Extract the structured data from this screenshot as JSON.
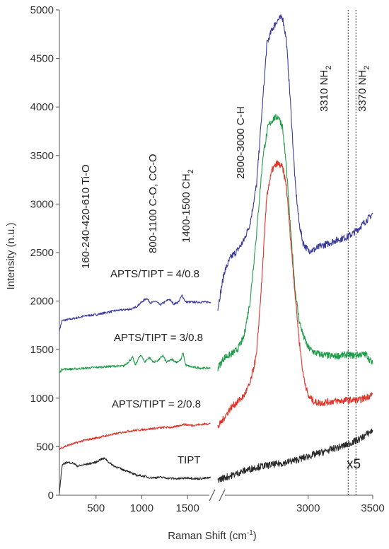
{
  "chart_data": {
    "type": "line",
    "xlabel": "Raman Shift (cm",
    "xlabel_sup": "-1",
    "xlabel_end": ")",
    "ylabel": "Intensity (n.u.)",
    "ylim": [
      0,
      5000
    ],
    "yticks": [
      0,
      500,
      1000,
      1500,
      2000,
      2500,
      3000,
      3500,
      4000,
      4500,
      5000
    ],
    "x_segments": [
      {
        "range": [
          100,
          1800
        ],
        "ticks": [
          500,
          1000,
          1500
        ]
      },
      {
        "range": [
          2300,
          3500
        ],
        "ticks": [
          3000,
          3500
        ]
      }
    ],
    "axis_break": "//",
    "series": [
      {
        "name": "APTS/TIPT = 4/0.8",
        "color": "#3a3a9e",
        "left": [
          [
            100,
            1700
          ],
          [
            130,
            1800
          ],
          [
            200,
            1810
          ],
          [
            300,
            1830
          ],
          [
            400,
            1850
          ],
          [
            500,
            1860
          ],
          [
            600,
            1880
          ],
          [
            700,
            1900
          ],
          [
            800,
            1910
          ],
          [
            900,
            1920
          ],
          [
            950,
            1950
          ],
          [
            1000,
            1990
          ],
          [
            1050,
            2030
          ],
          [
            1100,
            1980
          ],
          [
            1150,
            2000
          ],
          [
            1200,
            1960
          ],
          [
            1250,
            1990
          ],
          [
            1300,
            2020
          ],
          [
            1350,
            1970
          ],
          [
            1400,
            1990
          ],
          [
            1440,
            2060
          ],
          [
            1480,
            1990
          ],
          [
            1550,
            1990
          ],
          [
            1650,
            1990
          ],
          [
            1750,
            1990
          ]
        ],
        "right": [
          [
            2300,
            1930
          ],
          [
            2350,
            2300
          ],
          [
            2400,
            2450
          ],
          [
            2450,
            2520
          ],
          [
            2500,
            2620
          ],
          [
            2550,
            2800
          ],
          [
            2600,
            3200
          ],
          [
            2650,
            4100
          ],
          [
            2680,
            4650
          ],
          [
            2720,
            4800
          ],
          [
            2760,
            4890
          ],
          [
            2800,
            4930
          ],
          [
            2830,
            4700
          ],
          [
            2860,
            4100
          ],
          [
            2900,
            3200
          ],
          [
            2930,
            2800
          ],
          [
            2960,
            2600
          ],
          [
            3000,
            2520
          ],
          [
            3050,
            2530
          ],
          [
            3100,
            2570
          ],
          [
            3150,
            2590
          ],
          [
            3200,
            2620
          ],
          [
            3250,
            2640
          ],
          [
            3300,
            2660
          ],
          [
            3350,
            2700
          ],
          [
            3400,
            2760
          ],
          [
            3450,
            2830
          ],
          [
            3500,
            2900
          ]
        ]
      },
      {
        "name": "APTS/TIPT = 3/0.8",
        "color": "#1f9e4a",
        "left": [
          [
            100,
            1260
          ],
          [
            130,
            1300
          ],
          [
            250,
            1300
          ],
          [
            400,
            1310
          ],
          [
            550,
            1320
          ],
          [
            700,
            1330
          ],
          [
            800,
            1330
          ],
          [
            850,
            1370
          ],
          [
            900,
            1420
          ],
          [
            930,
            1340
          ],
          [
            970,
            1420
          ],
          [
            1000,
            1440
          ],
          [
            1030,
            1370
          ],
          [
            1080,
            1420
          ],
          [
            1130,
            1370
          ],
          [
            1180,
            1390
          ],
          [
            1230,
            1440
          ],
          [
            1270,
            1370
          ],
          [
            1330,
            1400
          ],
          [
            1380,
            1370
          ],
          [
            1430,
            1400
          ],
          [
            1450,
            1470
          ],
          [
            1480,
            1340
          ],
          [
            1550,
            1320
          ],
          [
            1650,
            1310
          ],
          [
            1750,
            1310
          ]
        ],
        "right": [
          [
            2300,
            1310
          ],
          [
            2350,
            1420
          ],
          [
            2400,
            1450
          ],
          [
            2450,
            1500
          ],
          [
            2500,
            1620
          ],
          [
            2550,
            2000
          ],
          [
            2600,
            2700
          ],
          [
            2650,
            3500
          ],
          [
            2690,
            3800
          ],
          [
            2730,
            3880
          ],
          [
            2770,
            3900
          ],
          [
            2800,
            3800
          ],
          [
            2830,
            3400
          ],
          [
            2860,
            2800
          ],
          [
            2900,
            2100
          ],
          [
            2930,
            1800
          ],
          [
            2960,
            1650
          ],
          [
            3000,
            1520
          ],
          [
            3050,
            1470
          ],
          [
            3100,
            1450
          ],
          [
            3150,
            1440
          ],
          [
            3200,
            1430
          ],
          [
            3250,
            1440
          ],
          [
            3300,
            1450
          ],
          [
            3350,
            1440
          ],
          [
            3400,
            1450
          ],
          [
            3450,
            1450
          ],
          [
            3500,
            1350
          ]
        ]
      },
      {
        "name": "APTS/TIPT = 2/0.8",
        "color": "#e0342a",
        "left": [
          [
            100,
            480
          ],
          [
            150,
            500
          ],
          [
            250,
            530
          ],
          [
            350,
            560
          ],
          [
            450,
            580
          ],
          [
            550,
            600
          ],
          [
            650,
            620
          ],
          [
            750,
            640
          ],
          [
            850,
            660
          ],
          [
            950,
            670
          ],
          [
            1050,
            680
          ],
          [
            1150,
            690
          ],
          [
            1250,
            700
          ],
          [
            1350,
            700
          ],
          [
            1450,
            730
          ],
          [
            1550,
            720
          ],
          [
            1650,
            730
          ],
          [
            1750,
            740
          ]
        ],
        "right": [
          [
            2300,
            700
          ],
          [
            2350,
            800
          ],
          [
            2400,
            900
          ],
          [
            2450,
            960
          ],
          [
            2500,
            1020
          ],
          [
            2550,
            1150
          ],
          [
            2600,
            1450
          ],
          [
            2640,
            2200
          ],
          [
            2680,
            3100
          ],
          [
            2720,
            3350
          ],
          [
            2760,
            3420
          ],
          [
            2800,
            3380
          ],
          [
            2830,
            3200
          ],
          [
            2860,
            2700
          ],
          [
            2900,
            2050
          ],
          [
            2930,
            1600
          ],
          [
            2960,
            1250
          ],
          [
            3000,
            1020
          ],
          [
            3050,
            960
          ],
          [
            3100,
            950
          ],
          [
            3150,
            960
          ],
          [
            3200,
            970
          ],
          [
            3250,
            970
          ],
          [
            3300,
            980
          ],
          [
            3350,
            980
          ],
          [
            3400,
            980
          ],
          [
            3450,
            1010
          ],
          [
            3500,
            1040
          ]
        ]
      },
      {
        "name": "TIPT",
        "color": "#2a2a2a",
        "left": [
          [
            100,
            30
          ],
          [
            130,
            310
          ],
          [
            180,
            340
          ],
          [
            250,
            330
          ],
          [
            300,
            300
          ],
          [
            350,
            310
          ],
          [
            400,
            320
          ],
          [
            450,
            330
          ],
          [
            500,
            340
          ],
          [
            550,
            370
          ],
          [
            600,
            380
          ],
          [
            650,
            330
          ],
          [
            700,
            300
          ],
          [
            750,
            280
          ],
          [
            800,
            260
          ],
          [
            850,
            250
          ],
          [
            900,
            220
          ],
          [
            950,
            205
          ],
          [
            1000,
            200
          ],
          [
            1100,
            180
          ],
          [
            1200,
            185
          ],
          [
            1300,
            175
          ],
          [
            1400,
            170
          ],
          [
            1500,
            180
          ],
          [
            1600,
            170
          ],
          [
            1700,
            175
          ],
          [
            1750,
            180
          ]
        ],
        "right": [
          [
            2300,
            160
          ],
          [
            2400,
            200
          ],
          [
            2500,
            250
          ],
          [
            2600,
            290
          ],
          [
            2700,
            310
          ],
          [
            2800,
            330
          ],
          [
            2900,
            360
          ],
          [
            3000,
            400
          ],
          [
            3100,
            440
          ],
          [
            3200,
            480
          ],
          [
            3300,
            520
          ],
          [
            3400,
            580
          ],
          [
            3500,
            670
          ]
        ]
      }
    ],
    "reference_lines": [
      3310,
      3370
    ],
    "annotations": {
      "tio": "160-240-420-610 Ti-O",
      "cco": "800-1100 C-O, CC-O",
      "ch2_main": "1400-1500 CH",
      "ch2_sub": "2",
      "ch": "2800-3000 C-H",
      "nh2_3310_main": "3310 NH",
      "nh2_3310_sub": "2",
      "nh2_3370_main": "3370 NH",
      "nh2_3370_sub": "2"
    },
    "magnification": "x5"
  }
}
